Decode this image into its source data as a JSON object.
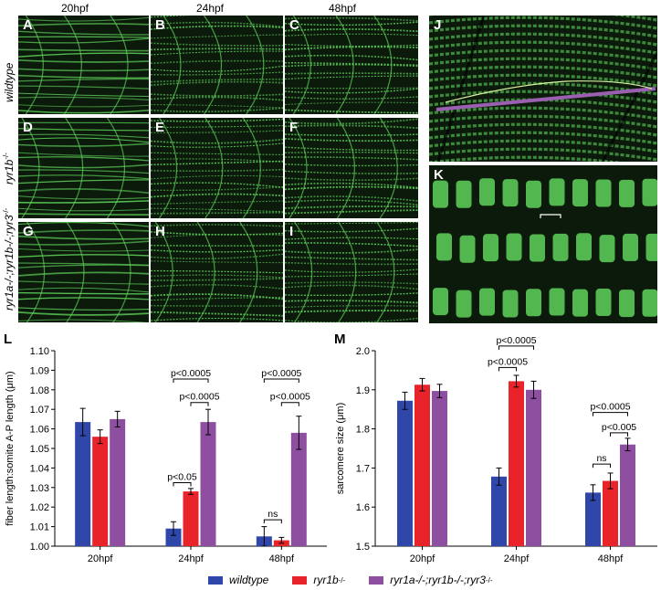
{
  "figure": {
    "col_headers": [
      "20hpf",
      "24hpf",
      "48hpf"
    ],
    "row_labels": [
      {
        "name": "wildtype",
        "sup": ""
      },
      {
        "name": "ryr1b",
        "sup": "-/-"
      },
      {
        "name": "ryr1a-/-;ryr1b-/-;ryr3",
        "sup": "-/-"
      }
    ],
    "panel_letters": [
      "A",
      "B",
      "C",
      "D",
      "E",
      "F",
      "G",
      "H",
      "I",
      "J",
      "K"
    ],
    "chart_letters": [
      "L",
      "M"
    ]
  },
  "colors": {
    "wildtype": "#2f47a8",
    "ryr1b": "#e8232a",
    "triple": "#8e4fa0",
    "muscle": "#5fd35a",
    "muscle_bg": "#0c1a0c"
  },
  "chart_data": [
    {
      "type": "bar",
      "letter": "L",
      "categories": [
        "20hpf",
        "24hpf",
        "48hpf"
      ],
      "ylabel": "fiber length:somite A-P length (μm)",
      "ylim": [
        1.0,
        1.1
      ],
      "yticks": [
        "1.00",
        "1.01",
        "1.02",
        "1.03",
        "1.04",
        "1.05",
        "1.06",
        "1.07",
        "1.08",
        "1.09",
        "1.10"
      ],
      "series": [
        {
          "name": "wildtype",
          "values": [
            1.0635,
            1.009,
            1.005
          ],
          "errors": [
            0.007,
            0.0035,
            0.005
          ]
        },
        {
          "name": "ryr1b-/-",
          "values": [
            1.056,
            1.028,
            1.003
          ],
          "errors": [
            0.0035,
            0.0015,
            0.0015
          ]
        },
        {
          "name": "ryr1a-/-;ryr1b-/-;ryr3-/-",
          "values": [
            1.065,
            1.0635,
            1.058
          ],
          "errors": [
            0.004,
            0.0065,
            0.0085
          ]
        }
      ],
      "annotations": [
        {
          "text": "p<0.05",
          "group": 1,
          "from": 0,
          "to": 1,
          "y": 1.0325
        },
        {
          "text": "p<0.0005",
          "group": 1,
          "from": 1,
          "to": 2,
          "y": 1.0735
        },
        {
          "text": "p<0.0005",
          "group": 1,
          "from": 0,
          "to": 2,
          "y": 1.0855
        },
        {
          "text": "ns",
          "group": 2,
          "from": 0,
          "to": 1,
          "y": 1.0135
        },
        {
          "text": "p<0.0005",
          "group": 2,
          "from": 1,
          "to": 2,
          "y": 1.0735
        },
        {
          "text": "p<0.0005",
          "group": 2,
          "from": 0,
          "to": 2,
          "y": 1.0855
        }
      ]
    },
    {
      "type": "bar",
      "letter": "M",
      "categories": [
        "20hpf",
        "24hpf",
        "48hpf"
      ],
      "ylabel": "sarcomere size (μm)",
      "ylim": [
        1.5,
        2.0
      ],
      "yticks": [
        "1.5",
        "1.6",
        "1.7",
        "1.8",
        "1.9",
        "2.0"
      ],
      "series": [
        {
          "name": "wildtype",
          "values": [
            1.872,
            1.678,
            1.637
          ],
          "errors": [
            0.022,
            0.022,
            0.02
          ]
        },
        {
          "name": "ryr1b-/-",
          "values": [
            1.913,
            1.922,
            1.667
          ],
          "errors": [
            0.016,
            0.015,
            0.02
          ]
        },
        {
          "name": "ryr1a-/-;ryr1b-/-;ryr3-/-",
          "values": [
            1.897,
            1.9,
            1.76
          ],
          "errors": [
            0.017,
            0.022,
            0.016
          ]
        }
      ],
      "annotations": [
        {
          "text": "p<0.0005",
          "group": 1,
          "from": 0,
          "to": 1,
          "y": 1.957
        },
        {
          "text": "p<0.0005",
          "group": 1,
          "from": 0,
          "to": 2,
          "y": 2.012
        },
        {
          "text": "ns",
          "group": 2,
          "from": 0,
          "to": 1,
          "y": 1.71
        },
        {
          "text": "p<0.005",
          "group": 2,
          "from": 1,
          "to": 2,
          "y": 1.79
        },
        {
          "text": "p<0.0005",
          "group": 2,
          "from": 0,
          "to": 2,
          "y": 1.842
        }
      ]
    }
  ],
  "legend": [
    {
      "key": "wildtype",
      "name": "wildtype",
      "sup": ""
    },
    {
      "key": "ryr1b",
      "name": "ryr1b",
      "sup": "-/-"
    },
    {
      "key": "triple",
      "name": "ryr1a-/-;ryr1b-/-;ryr3",
      "sup": "-/-"
    }
  ]
}
